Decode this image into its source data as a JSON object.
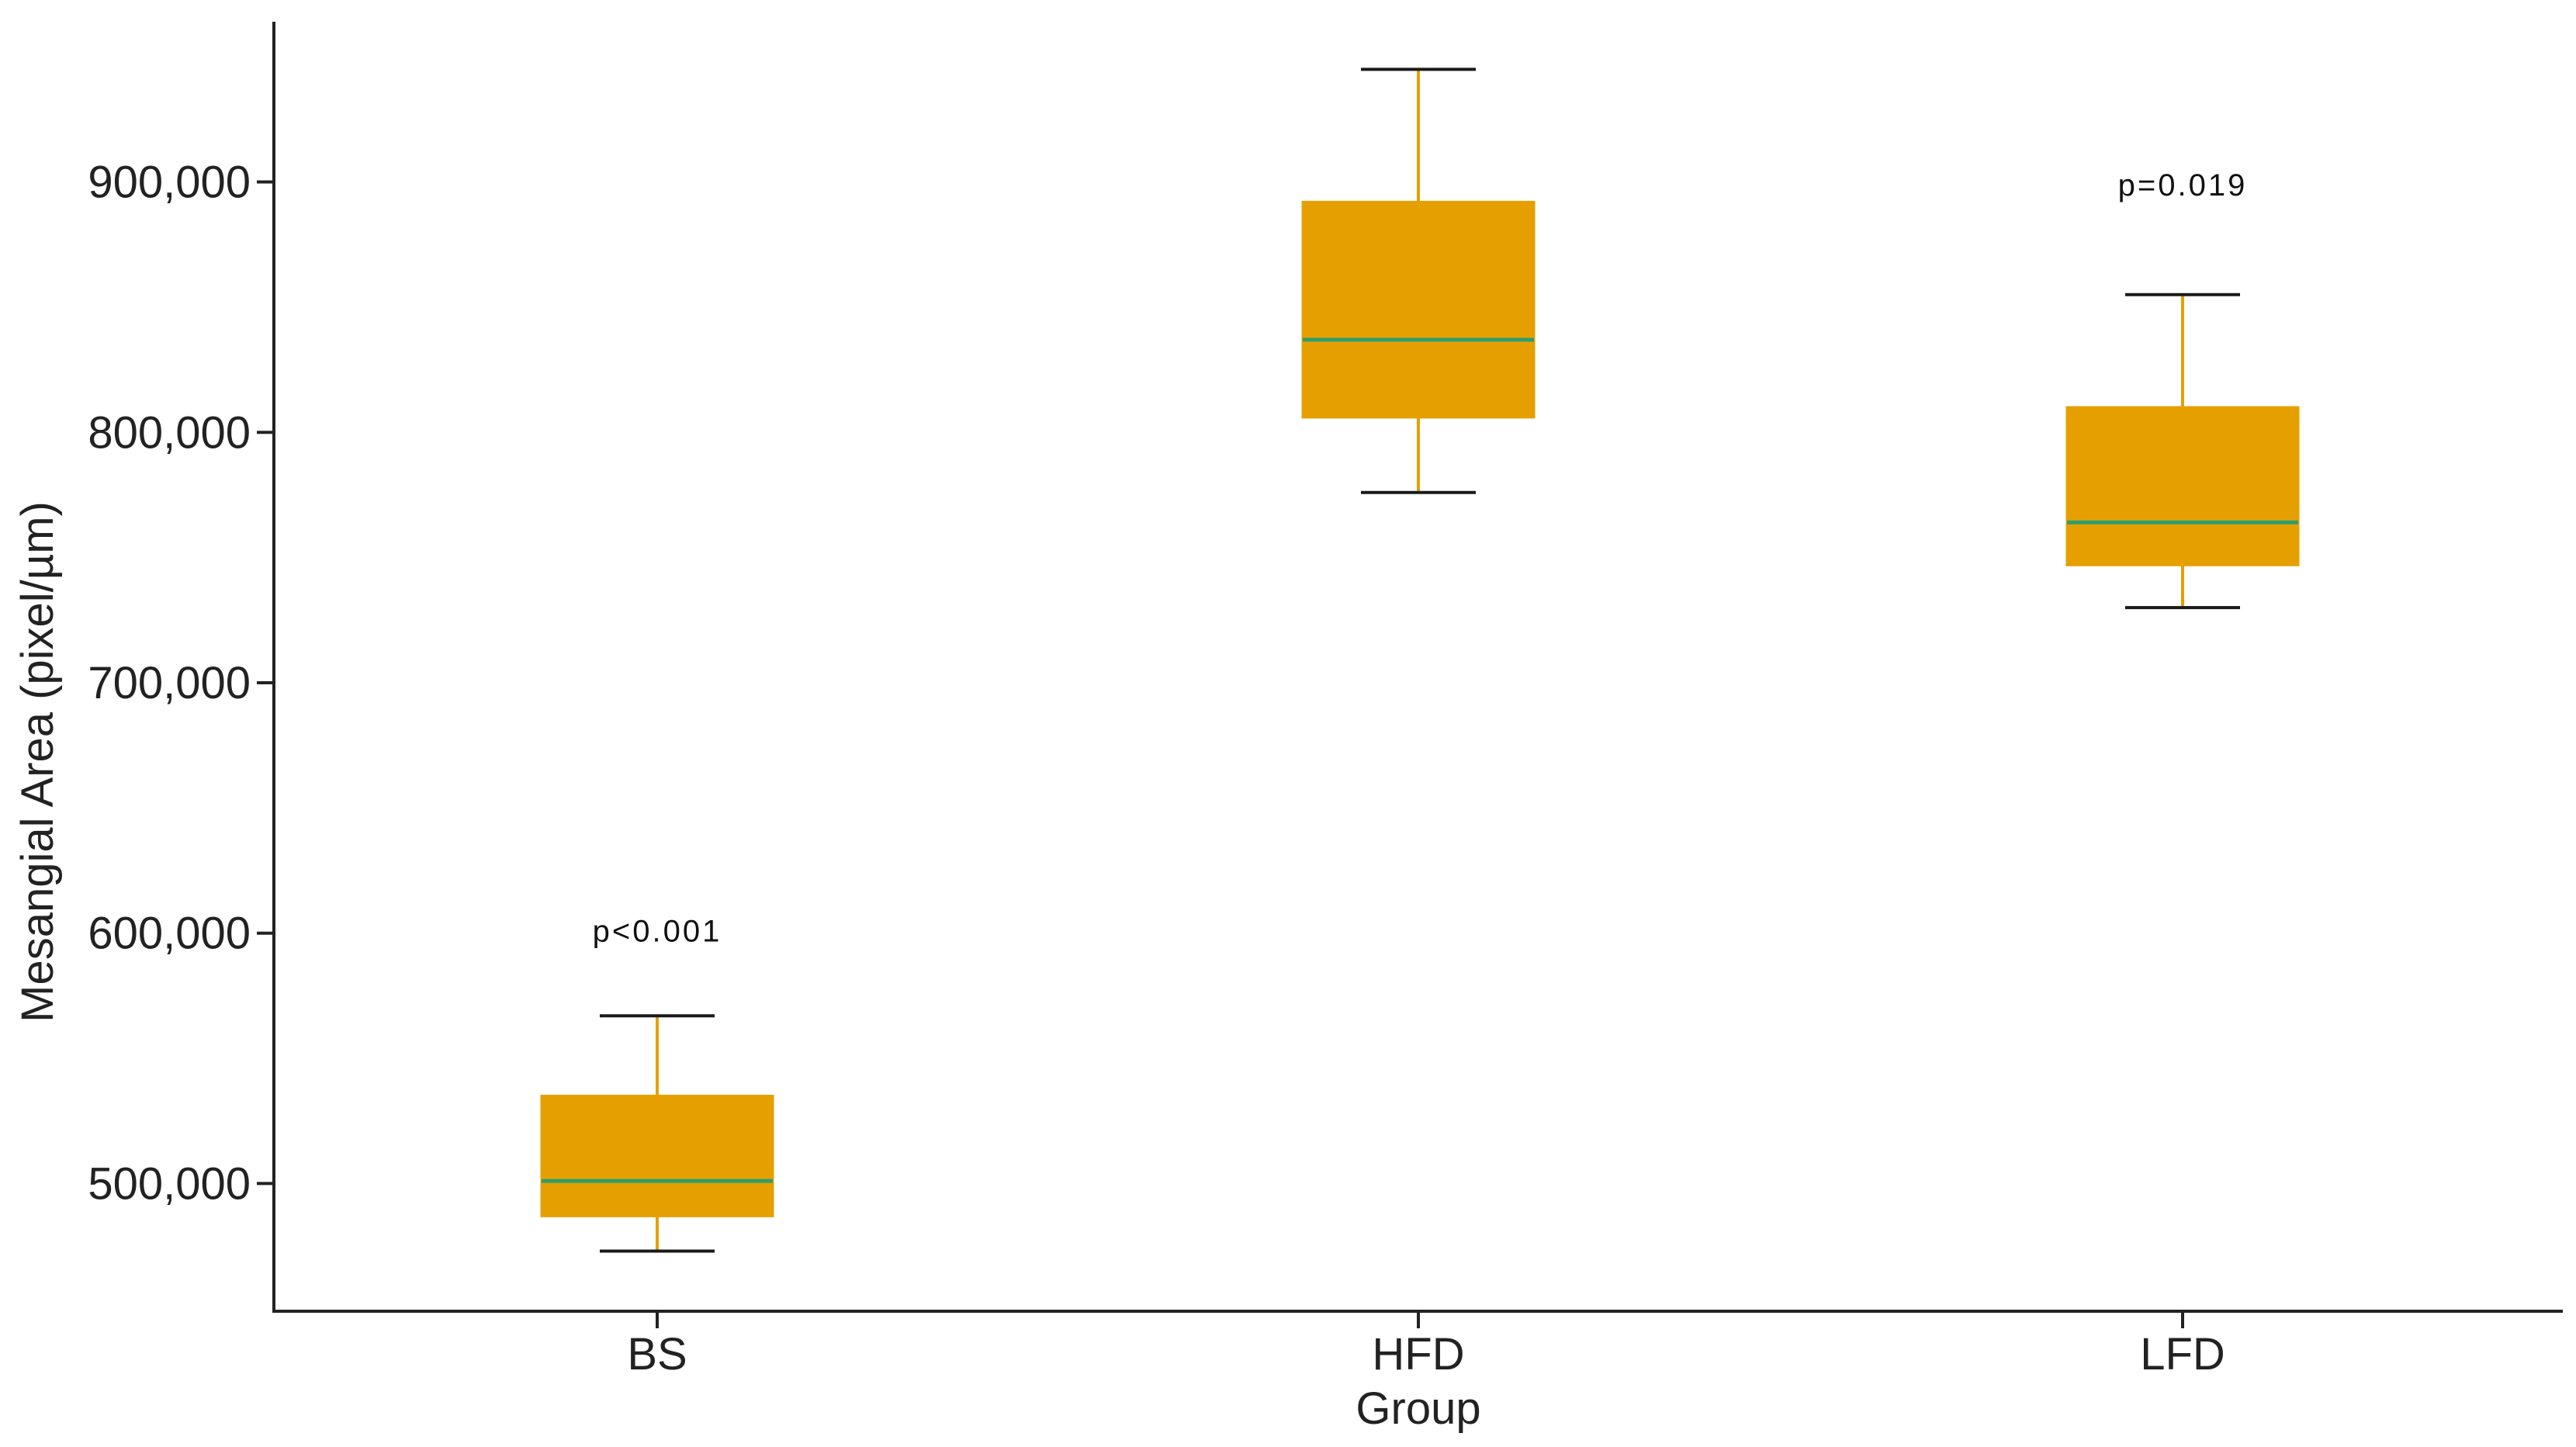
{
  "chart_data": {
    "type": "box",
    "title": "",
    "xlabel": "Group",
    "ylabel": "Mesangial Area (pixel/µm)",
    "categories": [
      "BS",
      "HFD",
      "LFD"
    ],
    "boxes": [
      {
        "category": "BS",
        "min": 473000,
        "q1": 487000,
        "median": 501000,
        "q3": 535000,
        "max": 567000
      },
      {
        "category": "HFD",
        "min": 776000,
        "q1": 806000,
        "median": 837000,
        "q3": 892000,
        "max": 945000
      },
      {
        "category": "LFD",
        "min": 730000,
        "q1": 747000,
        "median": 764000,
        "q3": 810000,
        "max": 855000
      }
    ],
    "annotations": [
      {
        "category": "BS",
        "text": "p<0.001",
        "y": 601000
      },
      {
        "category": "LFD",
        "text": "p=0.019",
        "y": 899000
      }
    ],
    "yticks": [
      500000,
      600000,
      700000,
      800000,
      900000
    ],
    "ytick_labels": [
      "500,000",
      "600,000",
      "700,000",
      "800,000",
      "900,000"
    ],
    "ylim": [
      449000,
      964000
    ],
    "grid": false,
    "legend": "none",
    "colors": {
      "box_fill": "#E5A000",
      "median_line": "#2E9E6E",
      "whisker": "#E5A000",
      "whisker_cap": "#1A1A1A",
      "axis": "#222222"
    }
  }
}
